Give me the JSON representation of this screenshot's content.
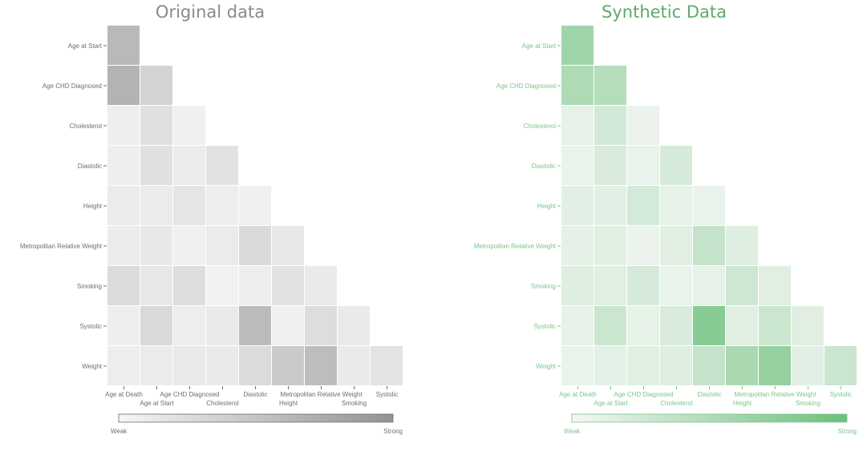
{
  "chart_data": [
    {
      "type": "heatmap",
      "title": "Original data",
      "color": "#929292",
      "title_color": "#8a8a8a",
      "label_color": "#6e6e6e",
      "row_labels": [
        "Age at Start",
        "Age CHD Diagnosed",
        "Cholesterol",
        "Diastolic",
        "Height",
        "Metropolitan Relative Weight",
        "Smoking",
        "Systolic",
        "Weight"
      ],
      "col_labels": [
        "Age at Death",
        "Age at Start",
        "Age CHD Diagnosed",
        "Cholesterol",
        "Diastolic",
        "Height",
        "Metropolitan Relative Weight",
        "Smoking",
        "Systolic"
      ],
      "values": [
        [
          0.62
        ],
        [
          0.68,
          0.36
        ],
        [
          0.1,
          0.24,
          0.08
        ],
        [
          0.1,
          0.24,
          0.12,
          0.22
        ],
        [
          0.13,
          0.13,
          0.19,
          0.11,
          0.08
        ],
        [
          0.12,
          0.16,
          0.08,
          0.13,
          0.3,
          0.16
        ],
        [
          0.28,
          0.16,
          0.26,
          0.07,
          0.1,
          0.22,
          0.14
        ],
        [
          0.1,
          0.3,
          0.11,
          0.14,
          0.6,
          0.08,
          0.26,
          0.14
        ],
        [
          0.11,
          0.13,
          0.15,
          0.14,
          0.28,
          0.45,
          0.58,
          0.14,
          0.21
        ]
      ],
      "legend": {
        "low": "Weak",
        "high": "Strong",
        "placement": "bottom"
      }
    },
    {
      "type": "heatmap",
      "title": "Synthetic Data",
      "color": "#6bbf7a",
      "title_color": "#5eaa6b",
      "label_color": "#7cc48a",
      "row_labels": [
        "Age at Start",
        "Age CHD Diagnosed",
        "Cholesterol",
        "Diastolic",
        "Height",
        "Metropolitan Relative Weight",
        "Smoking",
        "Systolic",
        "Weight"
      ],
      "col_labels": [
        "Age at Death",
        "Age at Start",
        "Age CHD Diagnosed",
        "Cholesterol",
        "Diastolic",
        "Height",
        "Metropolitan Relative Weight",
        "Smoking",
        "Systolic"
      ],
      "values": [
        [
          0.62
        ],
        [
          0.52,
          0.48
        ],
        [
          0.12,
          0.26,
          0.08
        ],
        [
          0.1,
          0.22,
          0.1,
          0.24
        ],
        [
          0.15,
          0.15,
          0.25,
          0.12,
          0.1
        ],
        [
          0.13,
          0.16,
          0.08,
          0.16,
          0.36,
          0.18
        ],
        [
          0.18,
          0.16,
          0.24,
          0.1,
          0.12,
          0.3,
          0.16
        ],
        [
          0.11,
          0.32,
          0.12,
          0.22,
          0.8,
          0.16,
          0.32,
          0.16
        ],
        [
          0.1,
          0.14,
          0.16,
          0.18,
          0.36,
          0.56,
          0.7,
          0.15,
          0.32
        ]
      ],
      "legend": {
        "low": "Weak",
        "high": "Strong",
        "placement": "bottom"
      }
    }
  ]
}
